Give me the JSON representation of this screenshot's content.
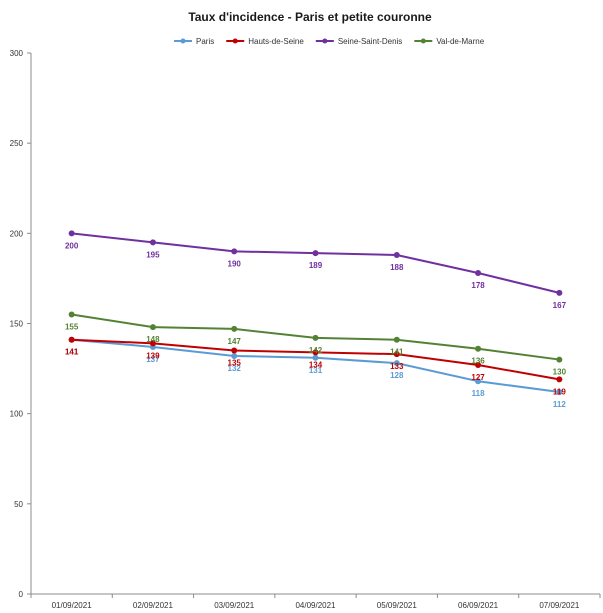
{
  "chart_data": {
    "type": "line",
    "title": "Taux d'incidence - Paris et petite couronne",
    "categories": [
      "01/09/2021",
      "02/09/2021",
      "03/09/2021",
      "04/09/2021",
      "05/09/2021",
      "06/09/2021",
      "07/09/2021"
    ],
    "ylim": [
      0,
      300
    ],
    "yticks": [
      "0",
      "50",
      "100",
      "150",
      "200",
      "250",
      "300"
    ],
    "grid": false,
    "legend_position": "top",
    "series": [
      {
        "name": "Paris",
        "color": "#5b9bd5",
        "values": [
          141,
          137,
          132,
          131,
          128,
          118,
          112
        ]
      },
      {
        "name": "Hauts-de-Seine",
        "color": "#c00000",
        "values": [
          141,
          139,
          135,
          134,
          133,
          127,
          119
        ]
      },
      {
        "name": "Seine-Saint-Denis",
        "color": "#7030a0",
        "values": [
          200,
          195,
          190,
          189,
          188,
          178,
          167
        ]
      },
      {
        "name": "Val-de-Marne",
        "color": "#548235",
        "values": [
          155,
          148,
          147,
          142,
          141,
          136,
          130
        ]
      }
    ]
  }
}
